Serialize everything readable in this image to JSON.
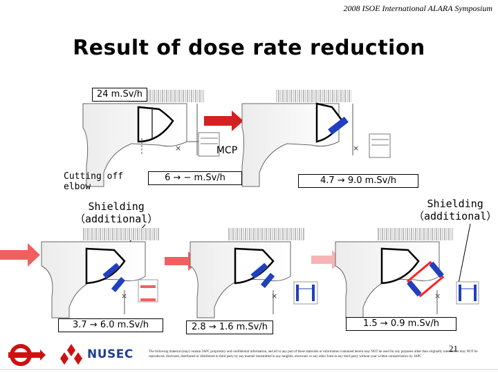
{
  "header": {
    "conference": "2008 ISOE International ALARA Symposium"
  },
  "title": "Result of dose rate reduction",
  "labels": {
    "top_left_dose": "24 m.Sv/h",
    "mcp": "MCP",
    "cutting_off": "Cutting off\nelbow",
    "dose_6": "6 → − m.Sv/h",
    "dose_4_7": "4.7 → 9.0 m.Sv/h",
    "shielding_left": "Shielding\n（additional）",
    "shielding_right": "Shielding\n（additional）",
    "dose_3_7": "3.7 → 6.0 m.Sv/h",
    "dose_2_8": "2.8 → 1.6 m.Sv/h",
    "dose_1_5": "1.5 → 0.9 m.Sv/h"
  },
  "footer": {
    "page_number": "21",
    "brand": "NUSEC",
    "disclaimer": "The following material (may) contain JAPC proprietary and confidential information, and all or any part of these materials or information contained herein may NOT be used for any purposes other than originally intended or may NOT be reproduced, disclosed, distributed or distributed to third party by any manner transmitted in any tangible, electronic or any other form to any third party without your written consent/notice by JAPC"
  },
  "colors": {
    "arrow_strong": "#d42020",
    "arrow_medium": "#f06060",
    "arrow_faint": "#f6b4b4",
    "shield": "#2040c0",
    "shield_additional": "#ff2020",
    "brand_blue": "#1f3f8f",
    "logo_red": "#d01010"
  }
}
